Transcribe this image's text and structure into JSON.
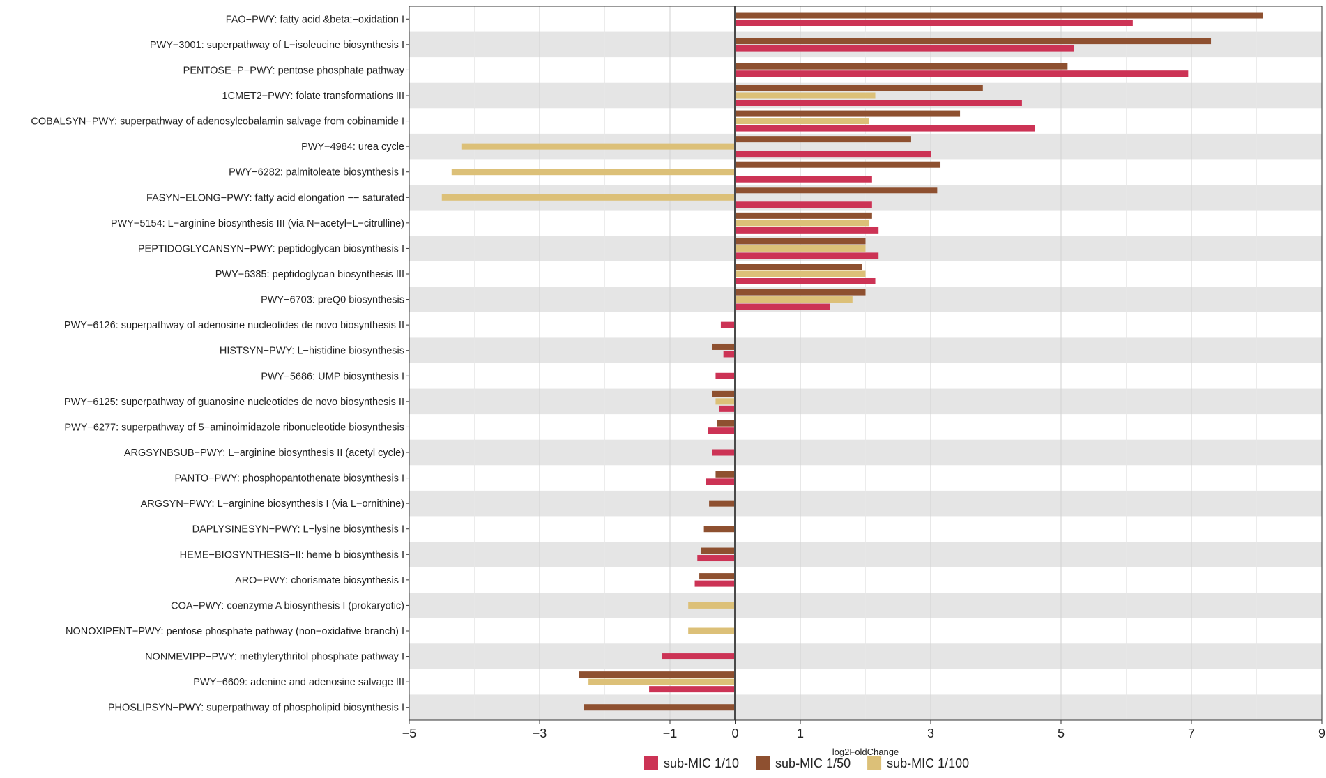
{
  "chart_data": {
    "type": "bar",
    "orientation": "horizontal",
    "xlabel": "log2FoldChange",
    "xlim": [
      -5,
      9
    ],
    "x_ticks": [
      -5,
      -3,
      -1,
      0,
      1,
      3,
      5,
      7,
      9
    ],
    "grid": true,
    "legend_position": "bottom",
    "colors": {
      "sub-MIC 1/10": "#cc3355",
      "sub-MIC 1/50": "#8e5030",
      "sub-MIC 1/100": "#dcc078"
    },
    "series_names": [
      "sub-MIC 1/50",
      "sub-MIC 1/100",
      "sub-MIC 1/10"
    ],
    "legend": [
      "sub-MIC 1/10",
      "sub-MIC 1/50",
      "sub-MIC 1/100"
    ],
    "categories": [
      "FAO−PWY: fatty acid &beta;−oxidation I",
      "PWY−3001: superpathway of L−isoleucine biosynthesis I",
      "PENTOSE−P−PWY: pentose phosphate pathway",
      "1CMET2−PWY: folate transformations III",
      "COBALSYN−PWY: superpathway of adenosylcobalamin salvage from cobinamide I",
      "PWY−4984: urea cycle",
      "PWY−6282: palmitoleate biosynthesis I",
      "FASYN−ELONG−PWY: fatty acid elongation −− saturated",
      "PWY−5154: L−arginine biosynthesis III (via N−acetyl−L−citrulline)",
      "PEPTIDOGLYCANSYN−PWY: peptidoglycan biosynthesis I",
      "PWY−6385: peptidoglycan biosynthesis III",
      "PWY−6703: preQ0 biosynthesis",
      "PWY−6126: superpathway of adenosine nucleotides de novo biosynthesis II",
      "HISTSYN−PWY: L−histidine biosynthesis",
      "PWY−5686: UMP biosynthesis I",
      "PWY−6125: superpathway of guanosine nucleotides de novo biosynthesis II",
      "PWY−6277: superpathway of 5−aminoimidazole ribonucleotide biosynthesis",
      "ARGSYNBSUB−PWY: L−arginine biosynthesis II (acetyl cycle)",
      "PANTO−PWY: phosphopantothenate biosynthesis I",
      "ARGSYN−PWY: L−arginine biosynthesis I (via L−ornithine)",
      "DAPLYSINESYN−PWY: L−lysine biosynthesis I",
      "HEME−BIOSYNTHESIS−II: heme b biosynthesis I",
      "ARO−PWY: chorismate biosynthesis I",
      "COA−PWY: coenzyme A biosynthesis I (prokaryotic)",
      "NONOXIPENT−PWY: pentose phosphate pathway (non−oxidative branch) I",
      "NONMEVIPP−PWY: methylerythritol phosphate pathway I",
      "PWY−6609: adenine and adenosine salvage III",
      "PHOSLIPSYN−PWY: superpathway of phospholipid biosynthesis I"
    ],
    "series": [
      {
        "name": "sub-MIC 1/50",
        "values": [
          8.1,
          7.3,
          5.1,
          3.8,
          3.45,
          2.7,
          3.15,
          3.1,
          2.1,
          2.0,
          1.95,
          2.0,
          null,
          -0.35,
          null,
          -0.35,
          -0.28,
          null,
          -0.3,
          -0.4,
          -0.48,
          -0.52,
          -0.55,
          null,
          null,
          null,
          -2.4,
          -2.32
        ]
      },
      {
        "name": "sub-MIC 1/100",
        "values": [
          null,
          null,
          null,
          2.15,
          2.05,
          -4.2,
          -4.35,
          -4.5,
          2.05,
          2.0,
          2.0,
          1.8,
          null,
          null,
          null,
          -0.3,
          null,
          null,
          null,
          null,
          null,
          null,
          null,
          -0.72,
          -0.72,
          null,
          -2.25,
          null
        ]
      },
      {
        "name": "sub-MIC 1/10",
        "values": [
          6.1,
          5.2,
          6.95,
          4.4,
          4.6,
          3.0,
          2.1,
          2.1,
          2.2,
          2.2,
          2.15,
          1.45,
          -0.22,
          -0.18,
          -0.3,
          -0.25,
          -0.42,
          -0.35,
          -0.45,
          null,
          null,
          -0.58,
          -0.62,
          null,
          null,
          -1.12,
          -1.32,
          null
        ]
      }
    ]
  }
}
